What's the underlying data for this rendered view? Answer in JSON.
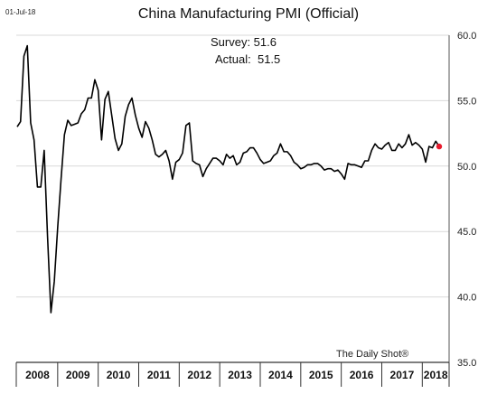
{
  "date_stamp": "01-Jul-18",
  "source": "The Daily Shot®",
  "chart_data": {
    "type": "line",
    "title": "China Manufacturing PMI (Official)",
    "annotations": {
      "survey": "Survey: 51.6",
      "actual": "Actual:  51.5"
    },
    "ylim": [
      35.0,
      60.0
    ],
    "y_ticks": [
      "35.0",
      "40.0",
      "45.0",
      "50.0",
      "55.0",
      "60.0"
    ],
    "x_ticks": [
      "2008",
      "2009",
      "2010",
      "2011",
      "2012",
      "2013",
      "2014",
      "2015",
      "2016",
      "2017",
      "2018"
    ],
    "xlim": [
      "2008-01",
      "2018-06"
    ],
    "grid": true,
    "line_color": "#000000",
    "highlight_color": "#e8192c",
    "series": [
      {
        "x": [
          "2008-01",
          "2008-02",
          "2008-03",
          "2008-04",
          "2008-05",
          "2008-06",
          "2008-07",
          "2008-08",
          "2008-09",
          "2008-10",
          "2008-11",
          "2008-12",
          "2009-01",
          "2009-02",
          "2009-03",
          "2009-04",
          "2009-05",
          "2009-06",
          "2009-07",
          "2009-08",
          "2009-09",
          "2009-10",
          "2009-11",
          "2009-12",
          "2010-01",
          "2010-02",
          "2010-03",
          "2010-04",
          "2010-05",
          "2010-06",
          "2010-07",
          "2010-08",
          "2010-09",
          "2010-10",
          "2010-11",
          "2010-12",
          "2011-01",
          "2011-02",
          "2011-03",
          "2011-04",
          "2011-05",
          "2011-06",
          "2011-07",
          "2011-08",
          "2011-09",
          "2011-10",
          "2011-11",
          "2011-12",
          "2012-01",
          "2012-02",
          "2012-03",
          "2012-04",
          "2012-05",
          "2012-06",
          "2012-07",
          "2012-08",
          "2012-09",
          "2012-10",
          "2012-11",
          "2012-12",
          "2013-01",
          "2013-02",
          "2013-03",
          "2013-04",
          "2013-05",
          "2013-06",
          "2013-07",
          "2013-08",
          "2013-09",
          "2013-10",
          "2013-11",
          "2013-12",
          "2014-01",
          "2014-02",
          "2014-03",
          "2014-04",
          "2014-05",
          "2014-06",
          "2014-07",
          "2014-08",
          "2014-09",
          "2014-10",
          "2014-11",
          "2014-12",
          "2015-01",
          "2015-02",
          "2015-03",
          "2015-04",
          "2015-05",
          "2015-06",
          "2015-07",
          "2015-08",
          "2015-09",
          "2015-10",
          "2015-11",
          "2015-12",
          "2016-01",
          "2016-02",
          "2016-03",
          "2016-04",
          "2016-05",
          "2016-06",
          "2016-07",
          "2016-08",
          "2016-09",
          "2016-10",
          "2016-11",
          "2016-12",
          "2017-01",
          "2017-02",
          "2017-03",
          "2017-04",
          "2017-05",
          "2017-06",
          "2017-07",
          "2017-08",
          "2017-09",
          "2017-10",
          "2017-11",
          "2017-12",
          "2018-01",
          "2018-02",
          "2018-03",
          "2018-04",
          "2018-05",
          "2018-06"
        ],
        "values": [
          53.0,
          53.4,
          58.4,
          59.2,
          53.3,
          52.0,
          48.4,
          48.4,
          51.2,
          44.6,
          38.8,
          41.2,
          45.3,
          49.0,
          52.4,
          53.5,
          53.1,
          53.2,
          53.3,
          54.0,
          54.3,
          55.2,
          55.2,
          56.6,
          55.8,
          52.0,
          55.1,
          55.7,
          53.9,
          52.1,
          51.2,
          51.7,
          53.8,
          54.7,
          55.2,
          53.9,
          52.9,
          52.2,
          53.4,
          52.9,
          52.0,
          50.9,
          50.7,
          50.9,
          51.2,
          50.4,
          49.0,
          50.3,
          50.5,
          51.0,
          53.1,
          53.3,
          50.4,
          50.2,
          50.1,
          49.2,
          49.8,
          50.2,
          50.6,
          50.6,
          50.4,
          50.1,
          50.9,
          50.6,
          50.8,
          50.1,
          50.3,
          51.0,
          51.1,
          51.4,
          51.4,
          51.0,
          50.5,
          50.2,
          50.3,
          50.4,
          50.8,
          51.0,
          51.7,
          51.1,
          51.1,
          50.8,
          50.3,
          50.1,
          49.8,
          49.9,
          50.1,
          50.1,
          50.2,
          50.2,
          50.0,
          49.7,
          49.8,
          49.8,
          49.6,
          49.7,
          49.4,
          49.0,
          50.2,
          50.1,
          50.1,
          50.0,
          49.9,
          50.4,
          50.4,
          51.2,
          51.7,
          51.4,
          51.3,
          51.6,
          51.8,
          51.2,
          51.2,
          51.7,
          51.4,
          51.7,
          52.4,
          51.6,
          51.8,
          51.6,
          51.3,
          50.3,
          51.5,
          51.4,
          51.9,
          51.5
        ]
      }
    ]
  }
}
